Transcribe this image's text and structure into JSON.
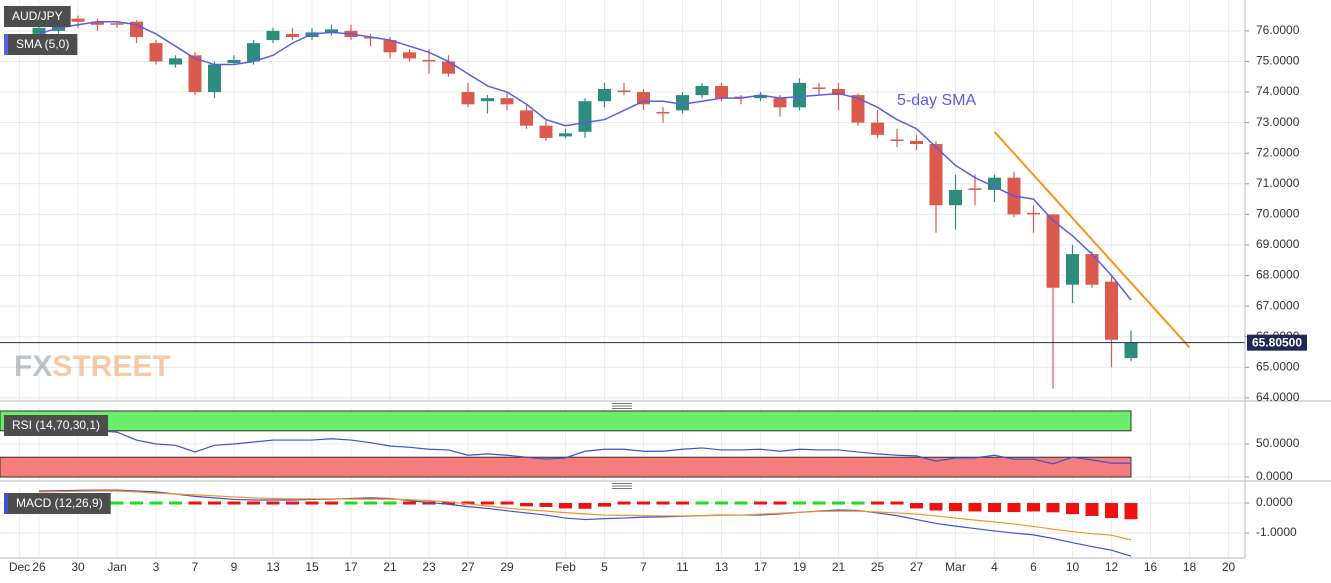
{
  "chart_data": [
    {
      "type": "candlestick",
      "title": "AUD/JPY",
      "open": [
        null,
        75.9,
        76.0,
        76.4,
        76.3,
        76.25,
        76.3,
        75.6,
        74.9,
        75.2,
        74.0,
        74.95,
        75.0,
        75.7,
        75.9,
        75.8,
        75.95,
        76.0,
        75.8,
        75.7,
        75.3,
        75.05,
        75.0,
        74.0,
        73.7,
        73.8,
        73.4,
        72.9,
        72.55,
        72.7,
        73.7,
        74.05,
        74.0,
        73.35,
        73.4,
        73.9,
        74.2,
        73.85,
        73.8,
        73.8,
        73.5,
        74.15,
        74.1,
        73.9,
        73.0,
        72.45,
        72.4,
        72.3,
        70.3,
        70.85,
        70.8,
        71.2,
        70.05,
        70.0,
        67.7,
        68.7,
        67.8,
        65.3,
        null,
        null,
        null,
        null,
        null,
        null
      ],
      "high": [
        null,
        76.3,
        76.4,
        76.5,
        76.4,
        76.3,
        76.35,
        75.7,
        75.2,
        75.3,
        75.0,
        75.2,
        75.7,
        76.1,
        76.1,
        76.1,
        76.2,
        76.2,
        75.9,
        75.8,
        75.4,
        75.4,
        75.2,
        74.3,
        73.9,
        74.0,
        73.6,
        73.1,
        72.8,
        73.8,
        74.3,
        74.3,
        74.1,
        73.5,
        74.0,
        74.3,
        74.3,
        73.9,
        74.0,
        73.9,
        74.45,
        74.3,
        74.3,
        73.95,
        73.4,
        72.8,
        72.6,
        72.4,
        71.3,
        71.3,
        71.3,
        71.4,
        70.3,
        70.0,
        69.0,
        68.8,
        68.0,
        66.2,
        null,
        null,
        null,
        null,
        null,
        null
      ],
      "low": [
        null,
        75.8,
        75.9,
        76.1,
        76.0,
        76.1,
        75.6,
        74.9,
        74.8,
        73.9,
        73.8,
        74.9,
        74.9,
        75.6,
        75.7,
        75.7,
        75.85,
        75.7,
        75.5,
        75.1,
        75.0,
        74.6,
        74.5,
        73.5,
        73.3,
        73.4,
        72.8,
        72.4,
        72.5,
        72.5,
        73.5,
        73.9,
        73.4,
        73.0,
        73.3,
        73.8,
        73.7,
        73.6,
        73.7,
        73.2,
        73.4,
        73.9,
        73.4,
        72.9,
        72.5,
        72.2,
        72.1,
        69.4,
        69.5,
        70.3,
        70.4,
        69.9,
        69.4,
        64.3,
        67.1,
        67.6,
        65.0,
        65.2,
        null,
        null,
        null,
        null,
        null,
        null
      ],
      "close": [
        null,
        76.1,
        76.3,
        76.3,
        76.2,
        76.2,
        75.8,
        75.0,
        75.1,
        74.0,
        74.9,
        75.05,
        75.6,
        76.0,
        75.8,
        75.95,
        76.05,
        75.8,
        75.75,
        75.3,
        75.1,
        75.0,
        74.6,
        73.6,
        73.8,
        73.6,
        72.9,
        72.5,
        72.65,
        73.7,
        74.1,
        74.0,
        73.6,
        73.3,
        73.9,
        74.2,
        73.8,
        73.8,
        73.9,
        73.5,
        74.3,
        74.1,
        73.9,
        73.0,
        72.6,
        72.4,
        72.3,
        70.3,
        70.8,
        70.8,
        71.2,
        70.0,
        70.0,
        67.6,
        68.7,
        67.7,
        65.9,
        65.8,
        null,
        null,
        null,
        null,
        null,
        null
      ],
      "up_color": "#2e8c7c",
      "down_color": "#dc5a4d",
      "series": [
        {
          "name": "SMA (5,0)",
          "color": "#5a5ee6",
          "values": [
            null,
            75.9,
            76.1,
            76.2,
            76.3,
            76.3,
            76.2,
            75.9,
            75.5,
            75.1,
            74.9,
            74.9,
            75.0,
            75.2,
            75.6,
            75.9,
            75.95,
            75.9,
            75.8,
            75.7,
            75.5,
            75.3,
            75.0,
            74.6,
            74.2,
            74.0,
            73.6,
            73.1,
            72.9,
            73.0,
            73.1,
            73.4,
            73.7,
            73.7,
            73.6,
            73.7,
            73.8,
            73.8,
            73.9,
            73.8,
            73.85,
            73.9,
            73.95,
            73.8,
            73.5,
            73.1,
            72.8,
            72.2,
            71.6,
            71.2,
            70.9,
            70.6,
            70.5,
            69.8,
            69.3,
            68.7,
            68.0,
            67.2,
            null,
            null,
            null,
            null,
            null,
            null
          ]
        }
      ],
      "annotation": "5-day SMA",
      "trendline": {
        "color": "#f7941d",
        "x": [
          50,
          60
        ],
        "values": [
          72.7,
          65.65
        ]
      },
      "last_price": {
        "value": 65.805,
        "label": "65.80500"
      },
      "watermark": [
        "FX",
        "STREET"
      ],
      "ylim": [
        63.93,
        77.01
      ],
      "yticks": [
        {
          "value": 64,
          "label": "64.0000"
        },
        {
          "value": 65,
          "label": "65.0000"
        },
        {
          "value": 66,
          "label": "66.0000"
        },
        {
          "value": 67,
          "label": "67.0000"
        },
        {
          "value": 68,
          "label": "68.0000"
        },
        {
          "value": 69,
          "label": "69.0000"
        },
        {
          "value": 70,
          "label": "70.0000"
        },
        {
          "value": 71,
          "label": "71.0000"
        },
        {
          "value": 72,
          "label": "72.0000"
        },
        {
          "value": 73,
          "label": "73.0000"
        },
        {
          "value": 74,
          "label": "74.0000"
        },
        {
          "value": 75,
          "label": "75.0000"
        },
        {
          "value": 76,
          "label": "76.0000"
        }
      ],
      "grid": true
    },
    {
      "type": "line",
      "title": "RSI (14,70,30,1)",
      "series": [
        {
          "color": "#3b52d6",
          "values": [
            null,
            71,
            70,
            70,
            70,
            68,
            56,
            50,
            48,
            38,
            48,
            50,
            53,
            56,
            56,
            56,
            58,
            56,
            52,
            47,
            45,
            42,
            41,
            33,
            35,
            33,
            30,
            27,
            29,
            39,
            42,
            42,
            39,
            39,
            42,
            44,
            41,
            41,
            42,
            39,
            42,
            41,
            41,
            38,
            35,
            33,
            32,
            24,
            29,
            29,
            33,
            27,
            27,
            20,
            30,
            26,
            21,
            21,
            null,
            null,
            null,
            null,
            null,
            null
          ]
        }
      ],
      "bands": [
        {
          "from": 70,
          "to": 100,
          "color": "#6bef6b"
        },
        {
          "from": 0,
          "to": 30,
          "color": "#f77c7c"
        }
      ],
      "ylim": [
        -4.5,
        104.5
      ],
      "yticks": [
        {
          "value": 50,
          "label": "50.0000"
        },
        {
          "value": 0,
          "label": "0.0000"
        }
      ],
      "grid": true
    },
    {
      "type": "macd",
      "title": "MACD (12,26,9)",
      "categories": [
        "Dec",
        "26",
        null,
        "30",
        null,
        "Jan",
        null,
        "3",
        null,
        "7",
        null,
        "9",
        null,
        "13",
        null,
        "15",
        null,
        "17",
        null,
        "21",
        null,
        "23",
        null,
        "27",
        null,
        "29",
        null,
        null,
        "Feb",
        null,
        "5",
        null,
        "7",
        null,
        "11",
        null,
        "13",
        null,
        "17",
        null,
        "19",
        null,
        "21",
        null,
        "25",
        null,
        "27",
        null,
        "Mar",
        null,
        "4",
        null,
        "6",
        null,
        "10",
        null,
        "12",
        null,
        "16",
        null,
        "18",
        null,
        "20",
        null
      ],
      "histogram": {
        "up_color": "#1fdc1f",
        "down_color": "#f01010",
        "values": [
          null,
          0.03,
          0.03,
          0.03,
          0.03,
          0.03,
          0.03,
          0.04,
          0.0,
          -0.05,
          -0.07,
          -0.08,
          -0.07,
          -0.05,
          -0.04,
          -0.02,
          -0.01,
          0.02,
          0.04,
          0.02,
          -0.03,
          -0.06,
          -0.08,
          -0.09,
          -0.08,
          -0.09,
          -0.11,
          -0.13,
          -0.18,
          -0.19,
          -0.12,
          -0.09,
          -0.05,
          -0.03,
          -0.01,
          0.0,
          0.01,
          0.0,
          -0.03,
          -0.02,
          0.0,
          0.01,
          0.04,
          0.02,
          -0.03,
          -0.09,
          -0.18,
          -0.25,
          -0.27,
          -0.28,
          -0.3,
          -0.3,
          -0.28,
          -0.31,
          -0.37,
          -0.43,
          -0.5,
          -0.54,
          null,
          null,
          null,
          null,
          null,
          null
        ]
      },
      "series": [
        {
          "color": "#3b52d6",
          "values": [
            null,
            0.4,
            0.41,
            0.42,
            0.43,
            0.43,
            0.4,
            0.37,
            0.3,
            0.22,
            0.17,
            0.12,
            0.1,
            0.1,
            0.1,
            0.12,
            0.13,
            0.15,
            0.17,
            0.15,
            0.08,
            0.02,
            -0.04,
            -0.12,
            -0.18,
            -0.26,
            -0.33,
            -0.4,
            -0.5,
            -0.55,
            -0.52,
            -0.5,
            -0.47,
            -0.46,
            -0.44,
            -0.42,
            -0.4,
            -0.4,
            -0.4,
            -0.36,
            -0.31,
            -0.27,
            -0.23,
            -0.25,
            -0.33,
            -0.42,
            -0.55,
            -0.68,
            -0.77,
            -0.85,
            -0.93,
            -1.0,
            -1.06,
            -1.18,
            -1.32,
            -1.45,
            -1.57,
            -1.77,
            null,
            null,
            null,
            null,
            null,
            null
          ]
        },
        {
          "color": "#f7941d",
          "values": [
            null,
            0.37,
            0.38,
            0.39,
            0.4,
            0.4,
            0.37,
            0.33,
            0.3,
            0.27,
            0.24,
            0.2,
            0.17,
            0.15,
            0.14,
            0.14,
            0.14,
            0.13,
            0.13,
            0.13,
            0.11,
            0.08,
            0.04,
            -0.03,
            -0.1,
            -0.17,
            -0.22,
            -0.27,
            -0.32,
            -0.36,
            -0.4,
            -0.41,
            -0.42,
            -0.43,
            -0.43,
            -0.42,
            -0.41,
            -0.4,
            -0.37,
            -0.34,
            -0.31,
            -0.28,
            -0.27,
            -0.27,
            -0.3,
            -0.33,
            -0.37,
            -0.43,
            -0.5,
            -0.57,
            -0.63,
            -0.7,
            -0.78,
            -0.87,
            -0.95,
            -1.02,
            -1.07,
            -1.23,
            null,
            null,
            null,
            null,
            null,
            null
          ]
        }
      ],
      "ylim": [
        -1.83,
        0.5
      ],
      "yticks": [
        {
          "value": 0,
          "label": "0.0000"
        },
        {
          "value": -1,
          "label": "-1.0000"
        }
      ],
      "grid": true
    }
  ]
}
